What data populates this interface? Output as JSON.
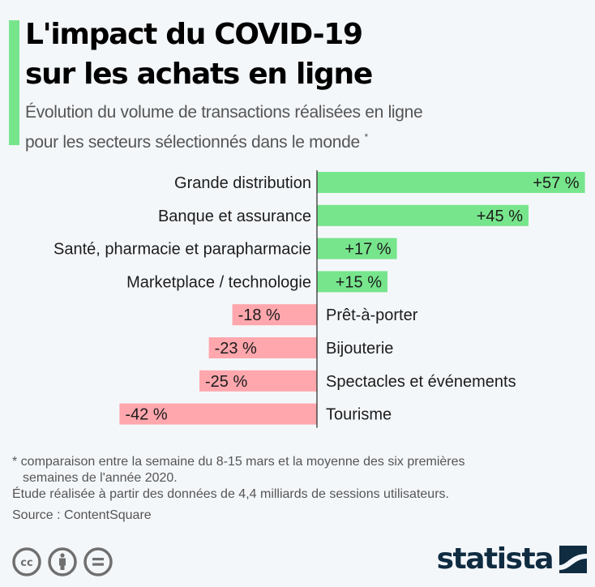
{
  "header": {
    "title_line1": "L'impact du COVID-19",
    "title_line2": "sur les achats en ligne",
    "subtitle_line1": "Évolution du volume de transactions réalisées en ligne",
    "subtitle_line2": "pour les secteurs sélectionnés dans le monde",
    "subtitle_marker": "*"
  },
  "colors": {
    "accent": "#77e58c",
    "positive": "#77e58c",
    "negative": "#ffa7ad",
    "axis": "#333333",
    "logo": "#0f2c41"
  },
  "chart_data": {
    "type": "bar",
    "orientation": "horizontal",
    "title": "L'impact du COVID-19 sur les achats en ligne",
    "subtitle": "Évolution du volume de transactions réalisées en ligne pour les secteurs sélectionnés dans le monde *",
    "xlabel": "",
    "ylabel": "",
    "unit": "%",
    "categories": [
      "Grande distribution",
      "Banque et assurance",
      "Santé, pharmacie et parapharmacie",
      "Marketplace / technologie",
      "Prêt-à-porter",
      "Bijouterie",
      "Spectacles et événements",
      "Tourisme"
    ],
    "values": [
      57,
      45,
      17,
      15,
      -18,
      -23,
      -25,
      -42
    ],
    "value_labels": [
      "+57 %",
      "+45 %",
      "+17 %",
      "+15 %",
      "-18 %",
      "-23 %",
      "-25 %",
      "-42 %"
    ],
    "xlim": [
      -42,
      57
    ],
    "grid": false,
    "legend": "none"
  },
  "footer": {
    "note_line1": "* comparaison entre la semaine du 8-15 mars et la moyenne des six premières",
    "note_line2": "semaines de l'année 2020.",
    "study": "Étude réalisée à partir des données de 4,4 milliards de sessions utilisateurs.",
    "source": "Source : ContentSquare",
    "license_icons": [
      "cc-icon",
      "attribution-icon",
      "no-derivatives-icon"
    ],
    "logo_text": "statista"
  }
}
